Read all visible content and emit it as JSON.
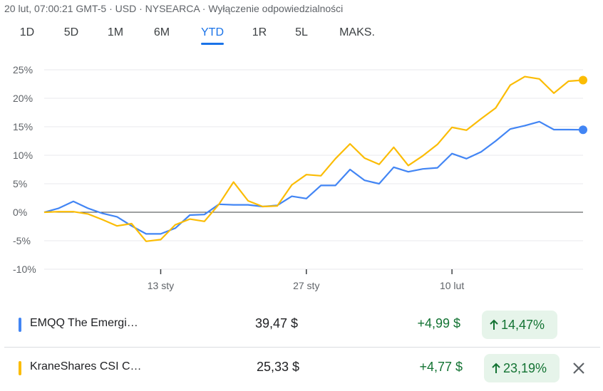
{
  "header": {
    "meta": "20 lut, 07:00:21 GMT-5 · USD · NYSEARCA · Wyłączenie odpowiedzialności"
  },
  "tabs": [
    {
      "label": "1D",
      "active": false
    },
    {
      "label": "5D",
      "active": false
    },
    {
      "label": "1M",
      "active": false
    },
    {
      "label": "6M",
      "active": false
    },
    {
      "label": "YTD",
      "active": true
    },
    {
      "label": "1R",
      "active": false
    },
    {
      "label": "5L",
      "active": false
    },
    {
      "label": "MAKS.",
      "active": false
    }
  ],
  "chart_data": {
    "type": "line",
    "ylim": [
      -10,
      25
    ],
    "yticks": [
      25,
      20,
      15,
      10,
      5,
      0,
      -5,
      -10
    ],
    "ytick_labels": [
      "25%",
      "20%",
      "15%",
      "10%",
      "5%",
      "0%",
      "-5%",
      "-10%"
    ],
    "x_ticks": [
      {
        "label": "13 sty",
        "index": 8
      },
      {
        "label": "27 sty",
        "index": 18
      },
      {
        "label": "10 lut",
        "index": 28
      }
    ],
    "grid": true,
    "series": [
      {
        "name": "EMQQ",
        "color": "#4285f4",
        "values": [
          0.0,
          0.7,
          1.9,
          0.7,
          -0.2,
          -0.8,
          -2.4,
          -3.8,
          -3.8,
          -2.8,
          -0.5,
          -0.4,
          1.4,
          1.3,
          1.3,
          1.0,
          1.2,
          2.8,
          2.4,
          4.7,
          4.7,
          7.5,
          5.6,
          5.0,
          7.9,
          7.1,
          7.6,
          7.8,
          10.3,
          9.4,
          10.6,
          12.5,
          14.6,
          15.2,
          15.9,
          14.5,
          14.5,
          14.47
        ]
      },
      {
        "name": "KraneShares",
        "color": "#fbbc04",
        "values": [
          0.0,
          0.1,
          0.1,
          -0.3,
          -1.3,
          -2.4,
          -2.0,
          -5.1,
          -4.8,
          -2.2,
          -1.2,
          -1.6,
          1.4,
          5.3,
          2.0,
          1.0,
          1.1,
          4.8,
          6.6,
          6.4,
          9.4,
          12.0,
          9.5,
          8.4,
          11.4,
          8.2,
          9.9,
          11.9,
          14.9,
          14.4,
          16.4,
          18.3,
          22.3,
          23.8,
          23.4,
          20.9,
          23.0,
          23.19
        ]
      }
    ]
  },
  "rows": [
    {
      "name": "EMQQ The Emergi…",
      "price": "39,47 $",
      "change": "+4,99 $",
      "percent": "14,47%",
      "color": "#4285f4"
    },
    {
      "name": "KraneShares CSI C…",
      "price": "25,33 $",
      "change": "+4,77 $",
      "percent": "23,19%",
      "color": "#fbbc04"
    }
  ],
  "icons": {
    "up_arrow": "arrow-up-icon",
    "close": "close-icon"
  }
}
